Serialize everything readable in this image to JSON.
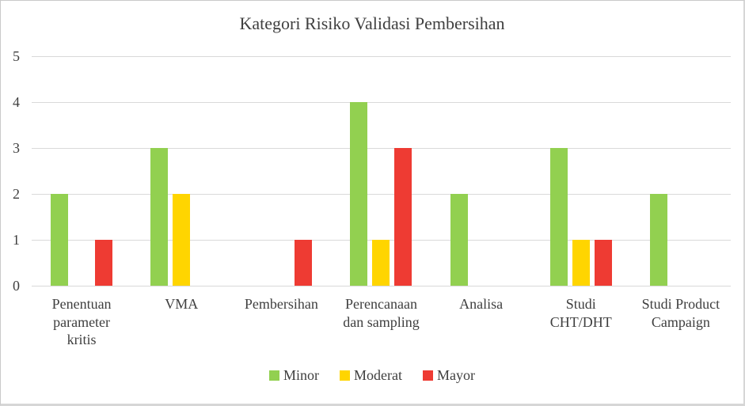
{
  "title": "Kategori Risiko Validasi Pembersihan",
  "colors": {
    "minor": "#92D050",
    "moderat": "#FFD500",
    "mayor": "#EE3B33",
    "gridline": "#D9D9D9",
    "text": "#3F3F3F"
  },
  "chart_data": {
    "type": "bar",
    "title": "Kategori Risiko Validasi Pembersihan",
    "xlabel": "",
    "ylabel": "",
    "categories": [
      "Penentuan\nparameter\nkritis",
      "VMA",
      "Pembersihan",
      "Perencanaan\ndan sampling",
      "Analisa",
      "Studi\nCHT/DHT",
      "Studi Product\nCampaign"
    ],
    "series": [
      {
        "name": "Minor",
        "color": "#92D050",
        "values": [
          2,
          3,
          0,
          4,
          2,
          3,
          2
        ]
      },
      {
        "name": "Moderat",
        "color": "#FFD500",
        "values": [
          0,
          2,
          0,
          1,
          0,
          1,
          0
        ]
      },
      {
        "name": "Mayor",
        "color": "#EE3B33",
        "values": [
          1,
          0,
          1,
          3,
          0,
          1,
          0
        ]
      }
    ],
    "ylim": [
      0,
      5
    ],
    "yticks": [
      0,
      1,
      2,
      3,
      4,
      5
    ],
    "grid": true,
    "legend_position": "bottom"
  }
}
